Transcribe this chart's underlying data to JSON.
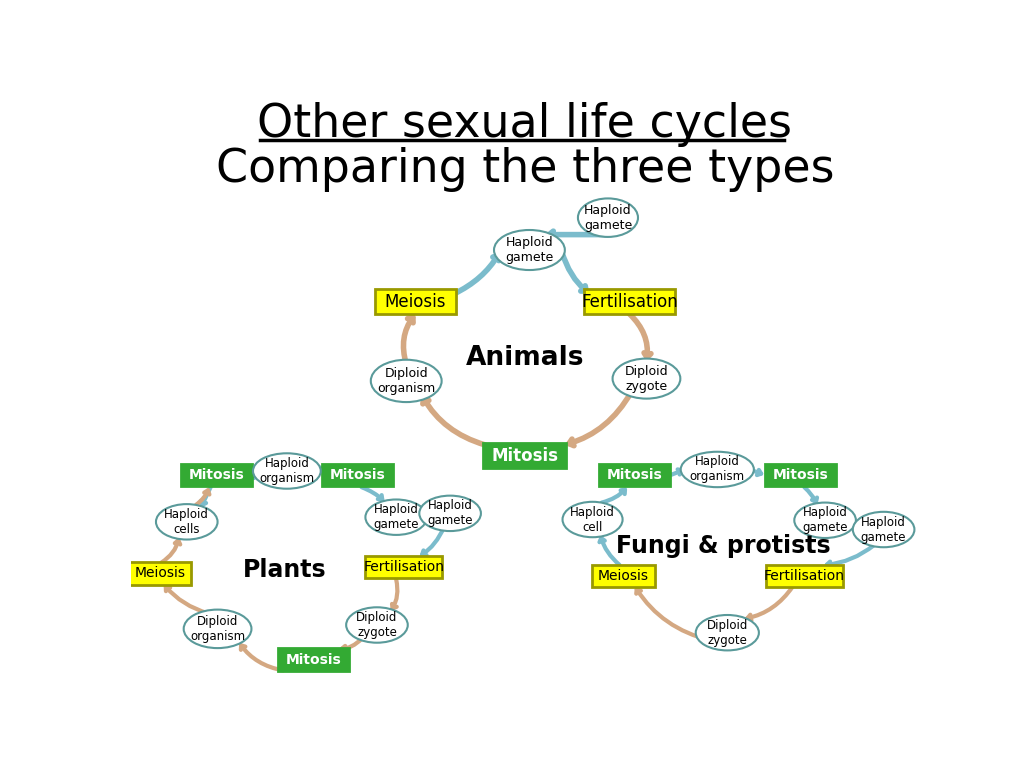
{
  "title_line1": "Other sexual life cycles",
  "title_line2": "Comparing the three types",
  "title_fontsize": 32,
  "subtitle_fontsize": 32,
  "bg_color": "#ffffff",
  "yellow_box_color": "#ffff00",
  "green_box_color": "#33aa33",
  "oval_border_color": "#5a9a9a",
  "blue_arrow_color": "#7bbccc",
  "tan_arrow_color": "#d4a882",
  "animals_label": "Animals",
  "plants_label": "Plants",
  "fungi_label": "Fungi & protists"
}
